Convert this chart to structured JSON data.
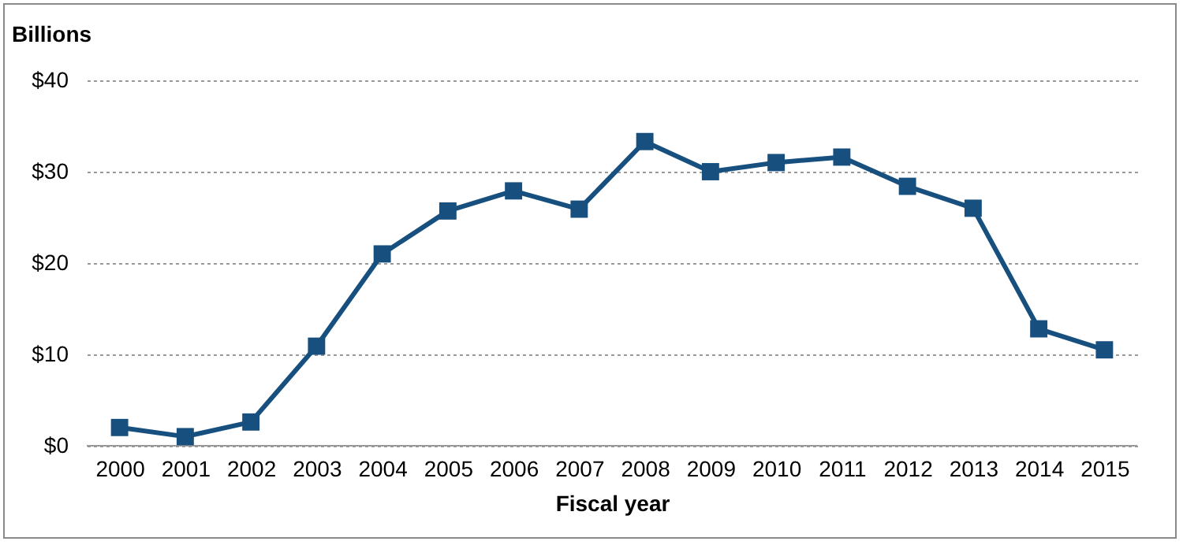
{
  "chart_data": {
    "type": "line",
    "ylabel": "Billions",
    "xlabel": "Fiscal year",
    "categories": [
      "2000",
      "2001",
      "2002",
      "2003",
      "2004",
      "2005",
      "2006",
      "2007",
      "2008",
      "2009",
      "2010",
      "2011",
      "2012",
      "2013",
      "2014",
      "2015"
    ],
    "series": [
      {
        "color": "#17507f",
        "values": [
          2.0,
          1.0,
          2.6,
          10.9,
          21.0,
          25.7,
          27.9,
          25.9,
          33.3,
          30.0,
          31.0,
          31.6,
          28.4,
          26.0,
          12.8,
          10.5
        ]
      }
    ],
    "ylim": [
      0,
      40
    ],
    "yticks": [
      {
        "value": 0,
        "label": "$0"
      },
      {
        "value": 10,
        "label": "$10"
      },
      {
        "value": 20,
        "label": "$20"
      },
      {
        "value": 30,
        "label": "$30"
      },
      {
        "value": 40,
        "label": "$40"
      }
    ],
    "grid": "y",
    "marker": "square",
    "line_style": "solid"
  }
}
